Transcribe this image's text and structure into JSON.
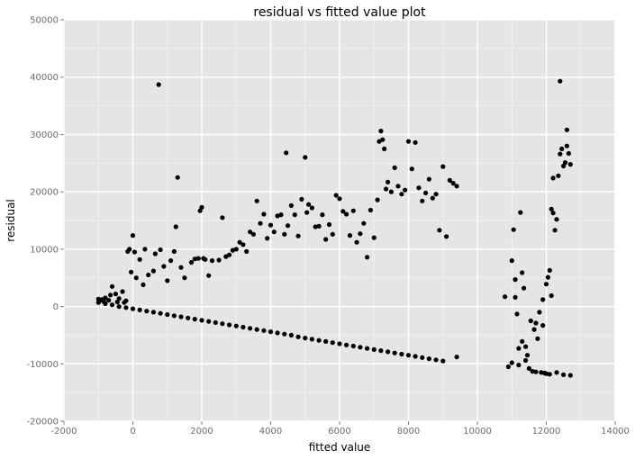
{
  "chart_data": {
    "type": "scatter",
    "title": "residual vs fitted value plot",
    "xlabel": "fitted value",
    "ylabel": "residual",
    "xlim": [
      -2000,
      14000
    ],
    "ylim": [
      -20000,
      50000
    ],
    "x_ticks": [
      -2000,
      0,
      2000,
      4000,
      6000,
      8000,
      10000,
      12000,
      14000
    ],
    "y_ticks": [
      -20000,
      -10000,
      0,
      10000,
      20000,
      30000,
      40000,
      50000
    ],
    "grid": true,
    "legend": "none",
    "colors": {
      "panel": "#e5e5e5",
      "grid_major": "#ffffff",
      "grid_minor": "#f2f2f2",
      "point": "#000000",
      "tick_text": "#6b6b6b"
    },
    "series": [
      {
        "points": [
          [
            -1000,
            1300
          ],
          [
            -950,
            1100
          ],
          [
            -900,
            1200
          ],
          [
            -850,
            900
          ],
          [
            -800,
            1500
          ],
          [
            -700,
            1100
          ],
          [
            -650,
            2000
          ],
          [
            -600,
            3500
          ],
          [
            -500,
            2200
          ],
          [
            -450,
            800
          ],
          [
            -400,
            1400
          ],
          [
            -300,
            2600
          ],
          [
            -250,
            700
          ],
          [
            -200,
            1000
          ],
          [
            -150,
            9600
          ],
          [
            -100,
            10000
          ],
          [
            -50,
            6000
          ],
          [
            0,
            12400
          ],
          [
            50,
            9500
          ],
          [
            100,
            5000
          ],
          [
            200,
            8200
          ],
          [
            300,
            3800
          ],
          [
            350,
            10000
          ],
          [
            450,
            5500
          ],
          [
            600,
            6200
          ],
          [
            650,
            9200
          ],
          [
            750,
            38700
          ],
          [
            800,
            9900
          ],
          [
            900,
            7000
          ],
          [
            1000,
            4500
          ],
          [
            1100,
            8000
          ],
          [
            1200,
            9600
          ],
          [
            1250,
            13900
          ],
          [
            1300,
            22500
          ],
          [
            1400,
            6800
          ],
          [
            1500,
            5000
          ],
          [
            1700,
            7700
          ],
          [
            1800,
            8300
          ],
          [
            1900,
            8400
          ],
          [
            1950,
            16700
          ],
          [
            2000,
            17300
          ],
          [
            2050,
            8400
          ],
          [
            2100,
            8200
          ],
          [
            2200,
            5400
          ],
          [
            2300,
            8000
          ],
          [
            2500,
            8100
          ],
          [
            2600,
            15500
          ],
          [
            2700,
            8700
          ],
          [
            2800,
            9000
          ],
          [
            2900,
            9800
          ],
          [
            3000,
            10000
          ],
          [
            3100,
            11200
          ],
          [
            3200,
            10800
          ],
          [
            3300,
            9600
          ],
          [
            3400,
            13000
          ],
          [
            3500,
            12600
          ],
          [
            3600,
            18400
          ],
          [
            3700,
            14500
          ],
          [
            3800,
            16100
          ],
          [
            3900,
            11900
          ],
          [
            4000,
            14200
          ],
          [
            4100,
            13000
          ],
          [
            4200,
            15800
          ],
          [
            4300,
            16000
          ],
          [
            4400,
            12600
          ],
          [
            4450,
            26800
          ],
          [
            4500,
            14100
          ],
          [
            4600,
            17600
          ],
          [
            4700,
            16000
          ],
          [
            4800,
            12300
          ],
          [
            4900,
            18700
          ],
          [
            5000,
            26000
          ],
          [
            5050,
            16400
          ],
          [
            5100,
            17800
          ],
          [
            5200,
            17200
          ],
          [
            5300,
            13900
          ],
          [
            5400,
            14000
          ],
          [
            5500,
            16000
          ],
          [
            5600,
            11700
          ],
          [
            5700,
            14300
          ],
          [
            5800,
            12600
          ],
          [
            5900,
            19400
          ],
          [
            6000,
            18800
          ],
          [
            6100,
            16600
          ],
          [
            6200,
            16100
          ],
          [
            6300,
            12400
          ],
          [
            6400,
            16700
          ],
          [
            6500,
            11200
          ],
          [
            6600,
            12700
          ],
          [
            6700,
            14500
          ],
          [
            6800,
            8600
          ],
          [
            6900,
            16800
          ],
          [
            7000,
            12000
          ],
          [
            7100,
            18600
          ],
          [
            7150,
            28800
          ],
          [
            7200,
            30600
          ],
          [
            7250,
            29100
          ],
          [
            7300,
            27500
          ],
          [
            7350,
            20500
          ],
          [
            7400,
            21700
          ],
          [
            7500,
            20000
          ],
          [
            7600,
            24200
          ],
          [
            7700,
            21000
          ],
          [
            7800,
            19600
          ],
          [
            7900,
            20300
          ],
          [
            8000,
            28800
          ],
          [
            8100,
            24000
          ],
          [
            8200,
            28600
          ],
          [
            8300,
            20700
          ],
          [
            8400,
            18400
          ],
          [
            8500,
            19800
          ],
          [
            8600,
            22200
          ],
          [
            8700,
            18900
          ],
          [
            8800,
            19600
          ],
          [
            8900,
            13300
          ],
          [
            9000,
            24400
          ],
          [
            9100,
            12200
          ],
          [
            9200,
            22000
          ],
          [
            9300,
            21500
          ],
          [
            9400,
            21000
          ],
          [
            -1000,
            700
          ],
          [
            -800,
            500
          ],
          [
            -600,
            300
          ],
          [
            -400,
            0
          ],
          [
            -200,
            -200
          ],
          [
            0,
            -400
          ],
          [
            200,
            -600
          ],
          [
            400,
            -800
          ],
          [
            600,
            -1000
          ],
          [
            800,
            -1200
          ],
          [
            1000,
            -1400
          ],
          [
            1200,
            -1600
          ],
          [
            1400,
            -1800
          ],
          [
            1600,
            -2000
          ],
          [
            1800,
            -2200
          ],
          [
            2000,
            -2400
          ],
          [
            2200,
            -2600
          ],
          [
            2400,
            -2800
          ],
          [
            2600,
            -3000
          ],
          [
            2800,
            -3200
          ],
          [
            3000,
            -3400
          ],
          [
            3200,
            -3600
          ],
          [
            3400,
            -3800
          ],
          [
            3600,
            -4000
          ],
          [
            3800,
            -4200
          ],
          [
            4000,
            -4400
          ],
          [
            4200,
            -4600
          ],
          [
            4400,
            -4800
          ],
          [
            4600,
            -5000
          ],
          [
            4800,
            -5300
          ],
          [
            5000,
            -5500
          ],
          [
            5200,
            -5700
          ],
          [
            5400,
            -5900
          ],
          [
            5600,
            -6100
          ],
          [
            5800,
            -6300
          ],
          [
            6000,
            -6500
          ],
          [
            6200,
            -6700
          ],
          [
            6400,
            -6900
          ],
          [
            6600,
            -7100
          ],
          [
            6800,
            -7300
          ],
          [
            7000,
            -7500
          ],
          [
            7200,
            -7700
          ],
          [
            7400,
            -7900
          ],
          [
            7600,
            -8100
          ],
          [
            7800,
            -8300
          ],
          [
            8000,
            -8500
          ],
          [
            8200,
            -8700
          ],
          [
            8400,
            -8900
          ],
          [
            8600,
            -9100
          ],
          [
            8800,
            -9300
          ],
          [
            9000,
            -9500
          ],
          [
            9400,
            -8800
          ],
          [
            10800,
            1700
          ],
          [
            10900,
            -10500
          ],
          [
            11000,
            8000
          ],
          [
            11000,
            -9800
          ],
          [
            11050,
            13400
          ],
          [
            11100,
            4700
          ],
          [
            11100,
            1600
          ],
          [
            11150,
            -1300
          ],
          [
            11200,
            -7300
          ],
          [
            11200,
            -10200
          ],
          [
            11250,
            16400
          ],
          [
            11300,
            5900
          ],
          [
            11300,
            -6100
          ],
          [
            11350,
            3200
          ],
          [
            11400,
            -7000
          ],
          [
            11400,
            -9400
          ],
          [
            11450,
            -8500
          ],
          [
            11500,
            -10800
          ],
          [
            11550,
            -2500
          ],
          [
            11600,
            -11300
          ],
          [
            11650,
            -4000
          ],
          [
            11700,
            -2900
          ],
          [
            11700,
            -11400
          ],
          [
            11750,
            -5600
          ],
          [
            11800,
            -1000
          ],
          [
            11850,
            -11500
          ],
          [
            11900,
            1200
          ],
          [
            11900,
            -3300
          ],
          [
            11950,
            -11600
          ],
          [
            12000,
            3900
          ],
          [
            12000,
            -11700
          ],
          [
            12050,
            5100
          ],
          [
            12100,
            6300
          ],
          [
            12100,
            -11800
          ],
          [
            12150,
            17000
          ],
          [
            12150,
            1900
          ],
          [
            12200,
            16300
          ],
          [
            12200,
            22400
          ],
          [
            12250,
            13300
          ],
          [
            12300,
            15200
          ],
          [
            12300,
            -11500
          ],
          [
            12350,
            22800
          ],
          [
            12400,
            26600
          ],
          [
            12400,
            39300
          ],
          [
            12450,
            27500
          ],
          [
            12500,
            24500
          ],
          [
            12500,
            -11900
          ],
          [
            12550,
            25100
          ],
          [
            12600,
            30800
          ],
          [
            12600,
            28000
          ],
          [
            12650,
            26700
          ],
          [
            12700,
            24800
          ],
          [
            12700,
            -12000
          ]
        ]
      }
    ]
  }
}
